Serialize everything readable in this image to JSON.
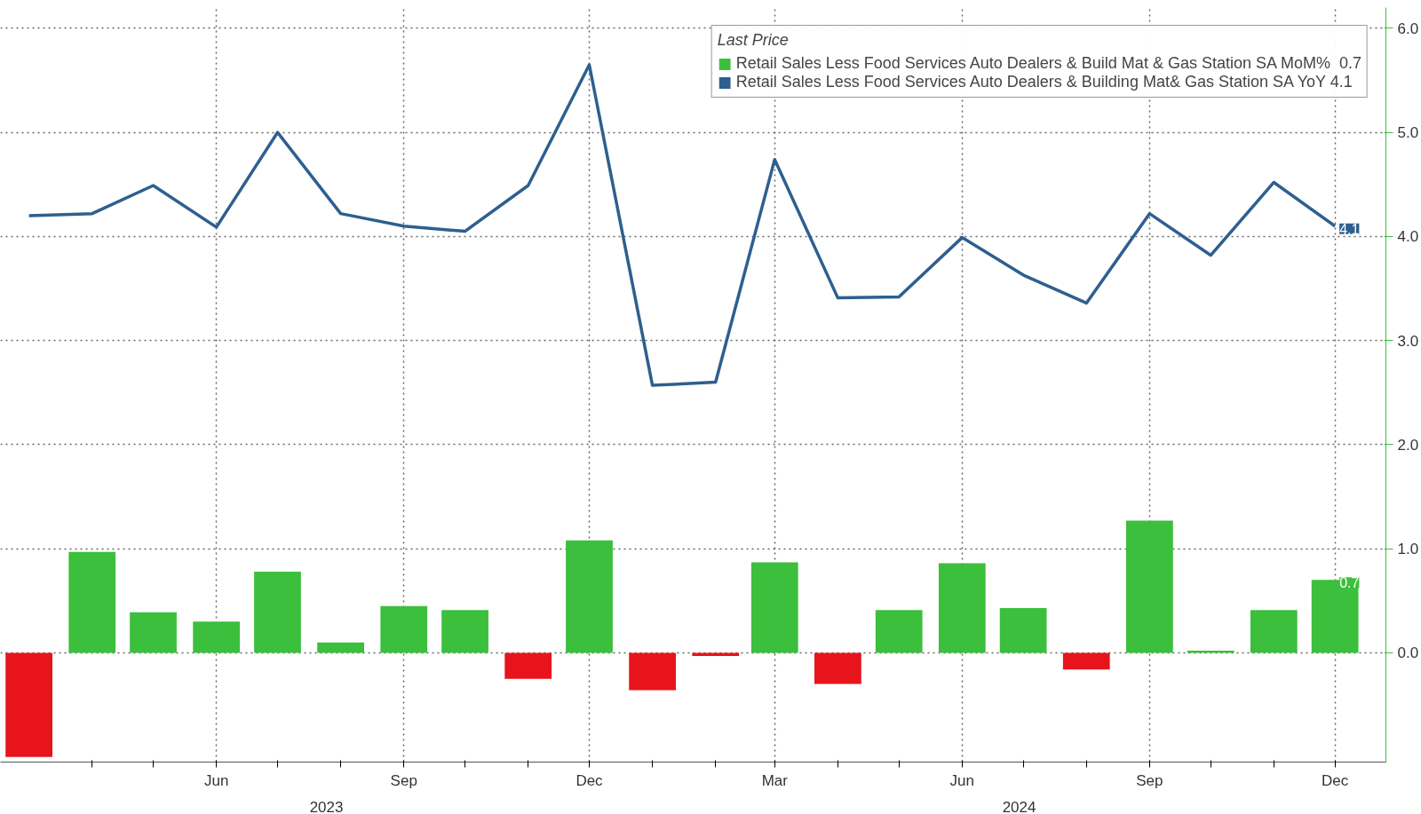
{
  "chart_data": {
    "type": "bar",
    "x": [
      "2023-03",
      "2023-04",
      "2023-05",
      "2023-06",
      "2023-07",
      "2023-08",
      "2023-09",
      "2023-10",
      "2023-11",
      "2023-12",
      "2024-01",
      "2024-02",
      "2024-03",
      "2024-04",
      "2024-05",
      "2024-06",
      "2024-07",
      "2024-08",
      "2024-09",
      "2024-10",
      "2024-11",
      "2024-12"
    ],
    "series": [
      {
        "name": "Retail Sales Less Food Services Auto Dealers & Build Mat & Gas Station SA MoM%  0.7",
        "color": "#3cbf3c",
        "colors": [
          "#e8141b",
          "#3cbf3c",
          "#3cbf3c",
          "#3cbf3c",
          "#3cbf3c",
          "#3cbf3c",
          "#3cbf3c",
          "#3cbf3c",
          "#e8141b",
          "#3cbf3c",
          "#e8141b",
          "#e8141b",
          "#3cbf3c",
          "#e8141b",
          "#3cbf3c",
          "#3cbf3c",
          "#3cbf3c",
          "#e8141b",
          "#3cbf3c",
          "#3cbf3c",
          "#3cbf3c",
          "#3cbf3c"
        ],
        "values": [
          -1.0,
          0.97,
          0.39,
          0.3,
          0.78,
          0.1,
          0.45,
          0.41,
          -0.25,
          1.08,
          -0.36,
          -0.03,
          0.87,
          -0.3,
          0.41,
          0.86,
          0.43,
          -0.16,
          1.27,
          0.02,
          0.41,
          0.7
        ],
        "value_labels": [
          null,
          null,
          null,
          null,
          null,
          null,
          null,
          null,
          null,
          null,
          null,
          null,
          null,
          null,
          null,
          null,
          null,
          null,
          null,
          null,
          null,
          "0.7"
        ]
      },
      {
        "type": "line",
        "name": "Retail Sales Less Food Services Auto Dealers & Building Mat& Gas Station SA YoY 4.1",
        "color": "#2e5f8f",
        "values": [
          4.2,
          4.22,
          4.49,
          4.09,
          5.0,
          4.22,
          4.1,
          4.05,
          4.49,
          5.65,
          2.57,
          2.6,
          4.74,
          3.41,
          3.42,
          3.99,
          3.63,
          3.36,
          4.22,
          3.82,
          4.52,
          4.1
        ],
        "value_labels": [
          null,
          null,
          null,
          null,
          null,
          null,
          null,
          null,
          null,
          null,
          null,
          null,
          null,
          null,
          null,
          null,
          null,
          null,
          null,
          null,
          null,
          "4.1"
        ]
      }
    ],
    "xlim": [
      "2023-02-15",
      "2024-12-26"
    ],
    "xticks": [
      {
        "value": "2023-04",
        "label": null
      },
      {
        "value": "2023-05",
        "label": null
      },
      {
        "value": "2023-06",
        "label": "Jun"
      },
      {
        "value": "2023-07",
        "label": null
      },
      {
        "value": "2023-08",
        "label": null
      },
      {
        "value": "2023-09",
        "label": "Sep"
      },
      {
        "value": "2023-10",
        "label": null
      },
      {
        "value": "2023-11",
        "label": null
      },
      {
        "value": "2023-12",
        "label": "Dec"
      },
      {
        "value": "2024-01",
        "label": null
      },
      {
        "value": "2024-02",
        "label": null
      },
      {
        "value": "2024-03",
        "label": "Mar"
      },
      {
        "value": "2024-04",
        "label": null
      },
      {
        "value": "2024-05",
        "label": null
      },
      {
        "value": "2024-06",
        "label": "Jun"
      },
      {
        "value": "2024-07",
        "label": null
      },
      {
        "value": "2024-08",
        "label": null
      },
      {
        "value": "2024-09",
        "label": "Sep"
      },
      {
        "value": "2024-10",
        "label": null
      },
      {
        "value": "2024-11",
        "label": null
      },
      {
        "value": "2024-12",
        "label": "Dec"
      }
    ],
    "ylim": [
      -1.05,
      6.2
    ],
    "yticks": [
      {
        "value": 0,
        "label": "0.0"
      },
      {
        "value": 1,
        "label": "1.0"
      },
      {
        "value": 2,
        "label": "2.0"
      },
      {
        "value": 3,
        "label": "3.0"
      },
      {
        "value": 4,
        "label": "4.0"
      },
      {
        "value": 5,
        "label": "5.0"
      },
      {
        "value": 6,
        "label": "6.0"
      }
    ],
    "annotations": [
      "2023",
      "2024"
    ],
    "legend_title": "Last Price",
    "legend": "top right",
    "grid": true
  }
}
